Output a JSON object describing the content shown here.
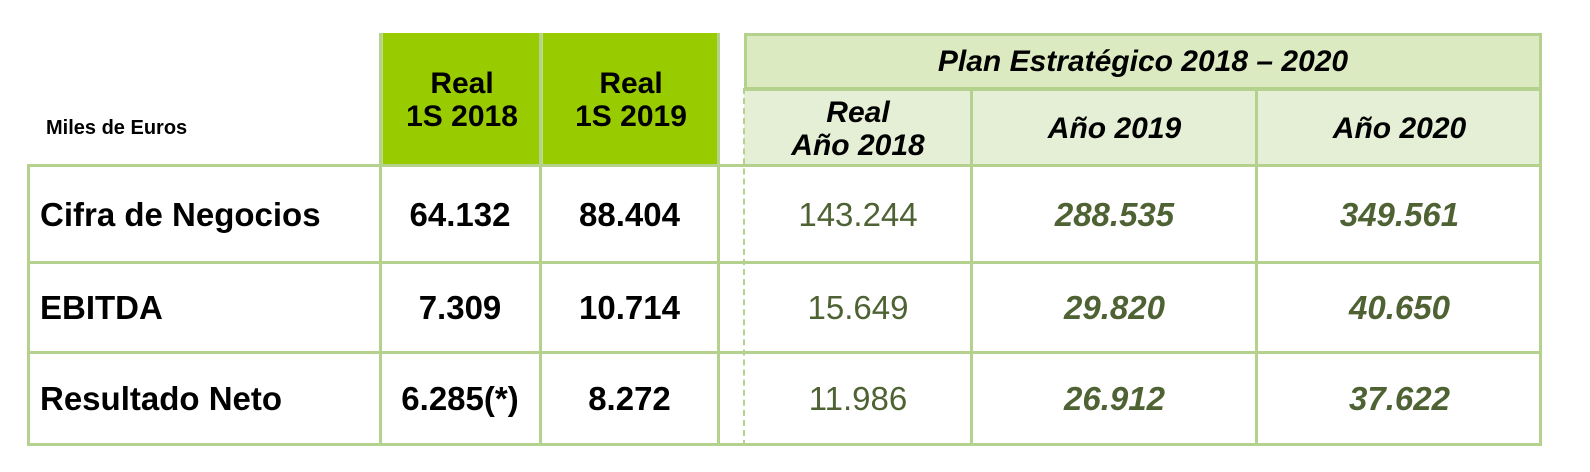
{
  "header": {
    "units_label": "Miles de Euros",
    "real_2018": {
      "line1": "Real",
      "line2": "1S 2018"
    },
    "real_2019": {
      "line1": "Real",
      "line2": "1S 2019"
    },
    "plan_title": "Plan Estratégico 2018 – 2020",
    "plan_real_2018": {
      "line1": "Real",
      "line2": "Año 2018"
    },
    "plan_2019": "Año 2019",
    "plan_2020": "Año 2020"
  },
  "rows": [
    {
      "label": "Cifra de Negocios",
      "real_1s_2018": "64.132",
      "real_1s_2019": "88.404",
      "real_2018": "143.244",
      "plan_2019": "288.535",
      "plan_2020": "349.561"
    },
    {
      "label": "EBITDA",
      "real_1s_2018": "7.309",
      "real_1s_2019": "10.714",
      "real_2018": "15.649",
      "plan_2019": "29.820",
      "plan_2020": "40.650"
    },
    {
      "label": "Resultado Neto",
      "real_1s_2018": "6.285(*)",
      "real_1s_2019": "8.272",
      "real_2018": "11.986",
      "plan_2019": "26.912",
      "plan_2020": "37.622"
    }
  ],
  "colors": {
    "accent_green": "#99cc00",
    "plan_header": "#dceac2",
    "plan_text": "#4e6233",
    "border": "#b4d18e"
  }
}
